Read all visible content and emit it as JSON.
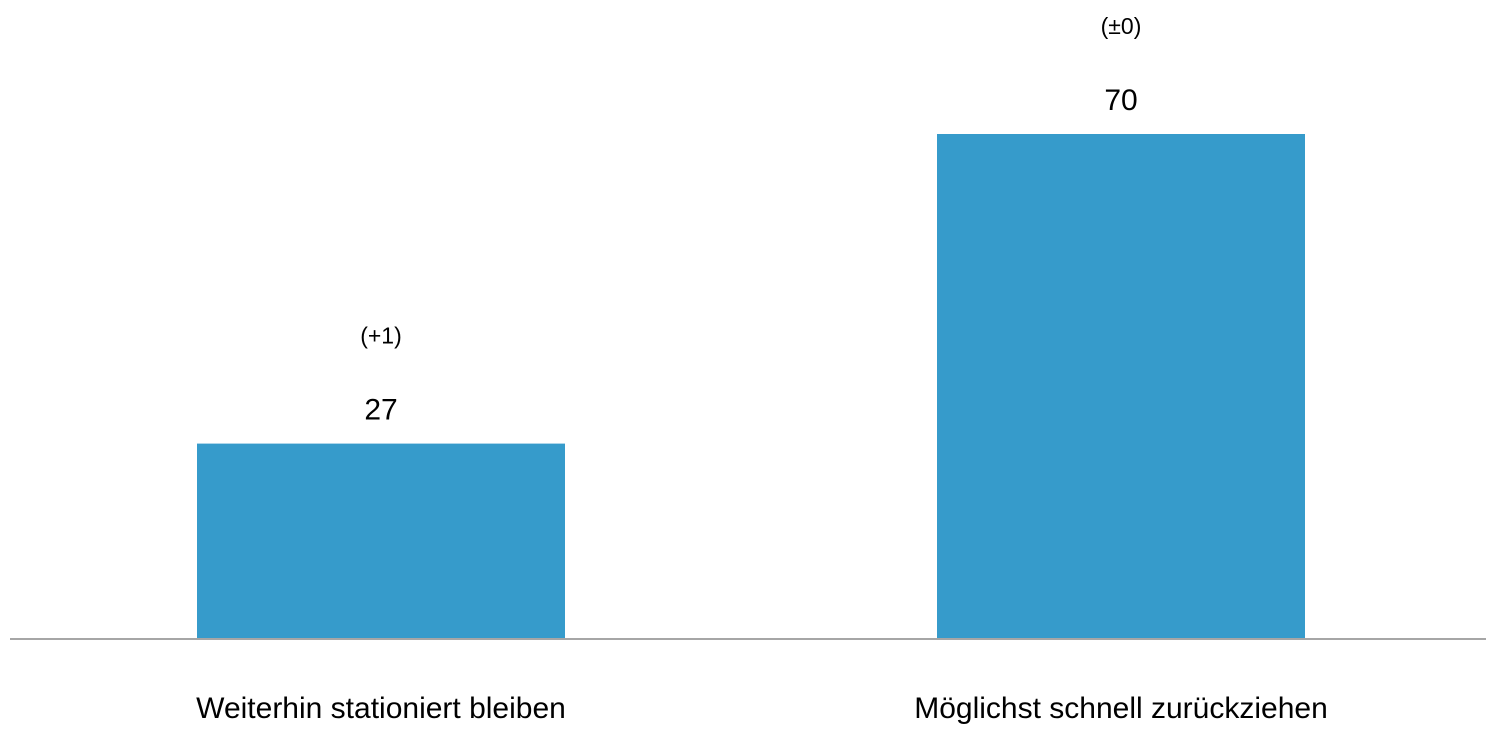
{
  "chart_data": {
    "type": "bar",
    "categories": [
      "Weiterhin stationiert bleiben",
      "Möglichst schnell zurückziehen"
    ],
    "values": [
      27,
      70
    ],
    "changes": [
      "(+1)",
      "(±0)"
    ],
    "title": "",
    "xlabel": "",
    "ylabel": "",
    "ylim": [
      0,
      70
    ],
    "grid": false,
    "bar_color": "#369bcb",
    "axis_color": "#a6a6a6"
  }
}
